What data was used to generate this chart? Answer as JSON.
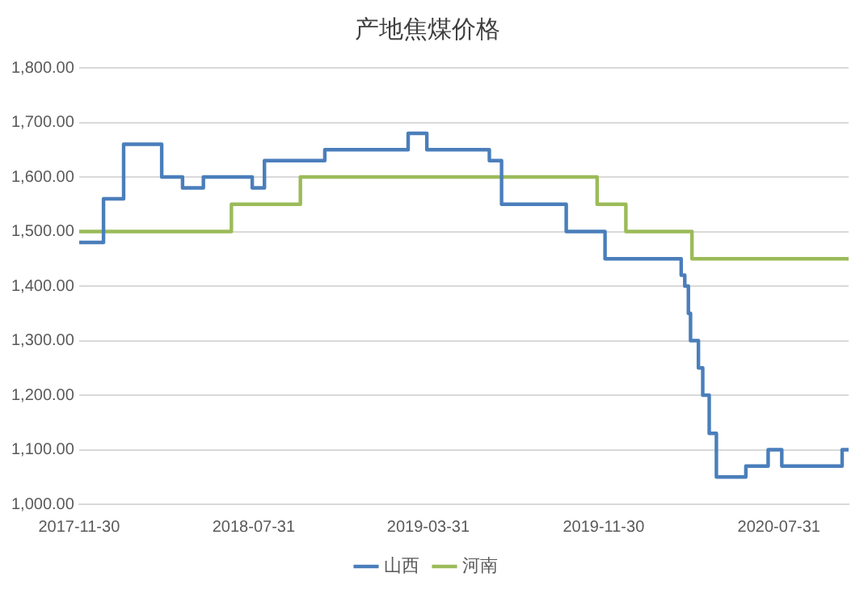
{
  "chart_data": {
    "type": "step",
    "title": "产地焦煤价格",
    "series": [
      {
        "name": "山西",
        "color": "#4a7ebb",
        "x": [
          "2017-11-30",
          "2018-01-03",
          "2018-01-31",
          "2018-03-25",
          "2018-04-23",
          "2018-05-22",
          "2018-07-29",
          "2018-08-15",
          "2018-11-07",
          "2019-03-03",
          "2019-03-29",
          "2019-06-24",
          "2019-07-11",
          "2019-10-09",
          "2019-12-02",
          "2020-03-17",
          "2020-03-22",
          "2020-03-27",
          "2020-03-30",
          "2020-04-10",
          "2020-04-16",
          "2020-04-25",
          "2020-05-05",
          "2020-06-15",
          "2020-07-16",
          "2020-08-04",
          "2020-10-27",
          "2020-11-05"
        ],
        "values": [
          1480,
          1560,
          1660,
          1600,
          1580,
          1600,
          1580,
          1630,
          1650,
          1680,
          1650,
          1630,
          1550,
          1500,
          1450,
          1420,
          1400,
          1350,
          1300,
          1250,
          1200,
          1130,
          1050,
          1070,
          1100,
          1070,
          1100,
          1100
        ]
      },
      {
        "name": "河南",
        "color": "#9bbb59",
        "x": [
          "2017-11-30",
          "2018-06-30",
          "2018-10-04",
          "2019-11-21",
          "2019-12-31",
          "2020-04-01",
          "2020-11-05"
        ],
        "values": [
          1500,
          1550,
          1600,
          1550,
          1500,
          1450,
          1450
        ]
      }
    ],
    "xlim": [
      "2017-11-30",
      "2020-11-05"
    ],
    "xticks": [
      "2017-11-30",
      "2018-07-31",
      "2019-03-31",
      "2019-11-30",
      "2020-07-31"
    ],
    "ylim": [
      1000,
      1800
    ],
    "yticks": [
      {
        "value": 1000,
        "label": "1,000.00"
      },
      {
        "value": 1100,
        "label": "1,100.00"
      },
      {
        "value": 1200,
        "label": "1,200.00"
      },
      {
        "value": 1300,
        "label": "1,300.00"
      },
      {
        "value": 1400,
        "label": "1,400.00"
      },
      {
        "value": 1500,
        "label": "1,500.00"
      },
      {
        "value": 1600,
        "label": "1,600.00"
      },
      {
        "value": 1700,
        "label": "1,700.00"
      },
      {
        "value": 1800,
        "label": "1,800.00"
      }
    ],
    "grid": "y",
    "legend": "bottom",
    "marker": "none",
    "line_style": "solid"
  }
}
